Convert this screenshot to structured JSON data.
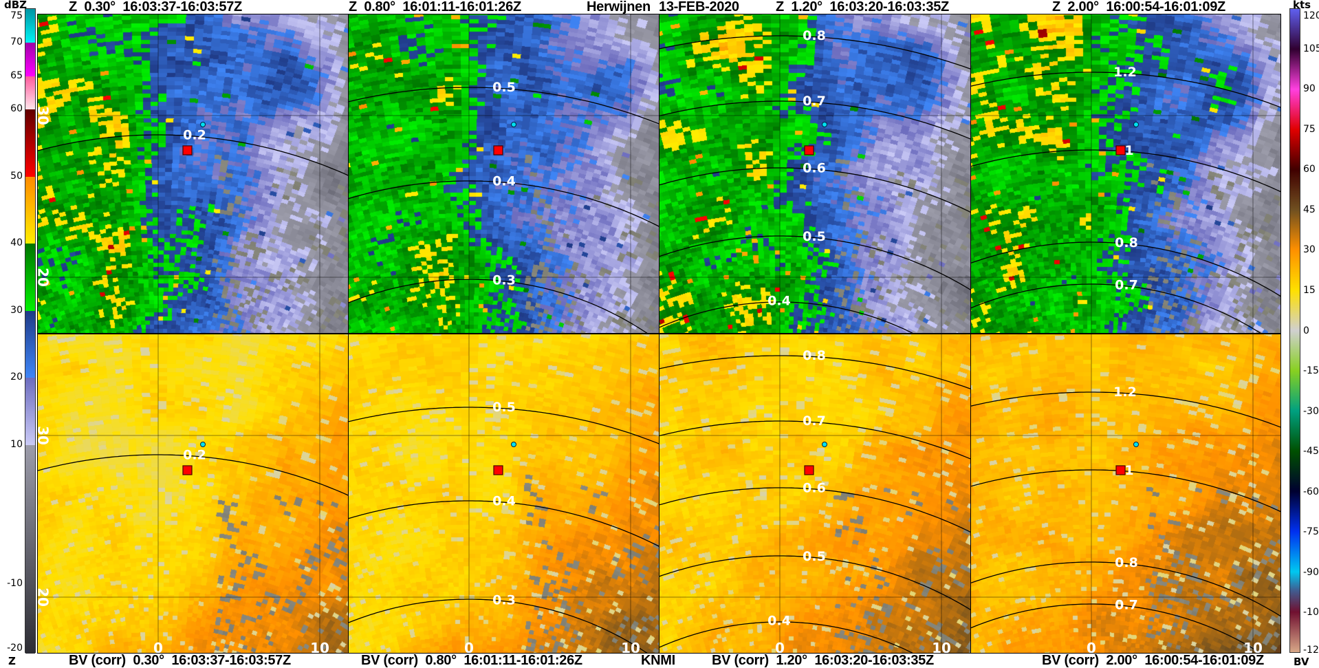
{
  "header": {
    "titles": [
      "Z  0.30°  16:03:37-16:03:57Z",
      "Z  0.80°  16:01:11-16:01:26Z",
      "Z  1.20°  16:03:20-16:03:35Z",
      "Z  2.00°  16:00:54-16:01:09Z"
    ],
    "station": "Herwijnen",
    "date": "13-FEB-2020"
  },
  "footer": {
    "titles": [
      "BV (corr)  0.30°  16:03:37-16:03:57Z",
      "BV (corr)  0.80°  16:01:11-16:01:26Z",
      "BV (corr)  1.20°  16:03:20-16:03:35Z",
      "BV (corr)  2.00°  16:00:54-16:01:09Z"
    ],
    "agency": "KNMI"
  },
  "colorbar_left": {
    "unit": "dBZ",
    "label": "Z",
    "ticks": [
      "75",
      "70",
      "65",
      "60",
      "50",
      "40",
      "30",
      "20",
      "10",
      "-10",
      "-20"
    ],
    "segments": [
      [
        -20,
        10,
        "#2c2c33",
        "#9c9caa"
      ],
      [
        10,
        20,
        "#cacaf6",
        "#6c6cbe"
      ],
      [
        20,
        30,
        "#3f86f7",
        "#1f3a86"
      ],
      [
        30,
        40,
        "#00f200",
        "#007400"
      ],
      [
        40,
        50,
        "#ffee00",
        "#ff8a00"
      ],
      [
        50,
        60,
        "#ff0000",
        "#600000"
      ],
      [
        60,
        65,
        "#ffe6ec",
        "#ff5a9c"
      ],
      [
        65,
        70,
        "#ff00ff",
        "#a000a8"
      ],
      [
        70,
        75,
        "#00f4f4",
        "#0094a4"
      ]
    ]
  },
  "colorbar_right": {
    "unit": "kts",
    "label": "BV",
    "ticks": [
      "120",
      "105",
      "90",
      "75",
      "60",
      "45",
      "30",
      "15",
      "0",
      "-15",
      "-30",
      "-45",
      "-60",
      "-75",
      "-90",
      "-105",
      "-120"
    ],
    "stops": [
      [
        -120,
        "#d8a888"
      ],
      [
        -105,
        "#701030"
      ],
      [
        -97,
        "#405c90"
      ],
      [
        -90,
        "#00c8f0"
      ],
      [
        -75,
        "#0030f0"
      ],
      [
        -60,
        "#000030"
      ],
      [
        -45,
        "#005000"
      ],
      [
        -30,
        "#00a080"
      ],
      [
        -15,
        "#88d020"
      ],
      [
        0,
        "#d0d0d0"
      ],
      [
        15,
        "#ffe000"
      ],
      [
        30,
        "#ff9000"
      ],
      [
        45,
        "#705020"
      ],
      [
        60,
        "#400000"
      ],
      [
        75,
        "#e00000"
      ],
      [
        90,
        "#ff40e0"
      ],
      [
        105,
        "#300030"
      ],
      [
        120,
        "#6060f0"
      ]
    ]
  },
  "panels": [
    {
      "ring_labels": [
        "0.2"
      ]
    },
    {
      "ring_labels": [
        "0.5",
        "0.4",
        "0.3"
      ]
    },
    {
      "ring_labels": [
        "0.8",
        "0.7",
        "0.6",
        "0.5",
        "0.4"
      ]
    },
    {
      "ring_labels": [
        "1.2",
        "1",
        "0.8",
        "0.7"
      ]
    }
  ],
  "axes": {
    "x_ticks": [
      "0",
      "10"
    ],
    "y_ticks": [
      "30",
      "20"
    ]
  },
  "colors": {
    "site_marker": "#ff0000",
    "point_marker": "#00e0f0",
    "clutter": "#7e7e72"
  }
}
